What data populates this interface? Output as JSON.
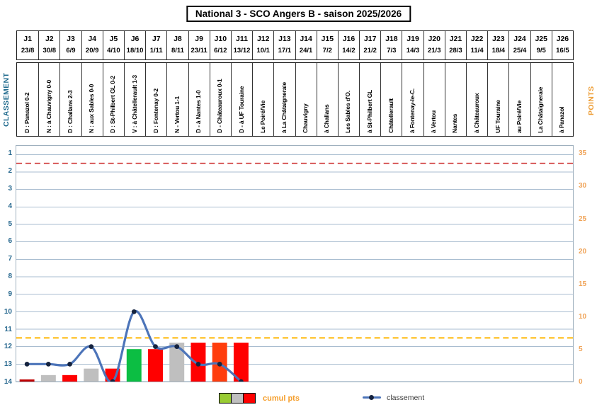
{
  "title": "National 3 - SCO Angers B - saison 2025/2026",
  "chart_data": {
    "type": "combo",
    "title": "National 3 - SCO Angers B - saison 2025/2026",
    "categories": [
      "J1",
      "J2",
      "J3",
      "J4",
      "J5",
      "J6",
      "J7",
      "J8",
      "J9",
      "J10",
      "J11",
      "J12",
      "J13",
      "J14",
      "J15",
      "J16",
      "J17",
      "J18",
      "J19",
      "J20",
      "J21",
      "J22",
      "J23",
      "J24",
      "J25",
      "J26"
    ],
    "dates": [
      "23/8",
      "30/8",
      "6/9",
      "20/9",
      "4/10",
      "18/10",
      "1/11",
      "8/11",
      "23/11",
      "6/12",
      "13/12",
      "10/1",
      "17/1",
      "24/1",
      "7/2",
      "14/2",
      "21/2",
      "7/3",
      "14/3",
      "21/3",
      "28/3",
      "11/4",
      "18/4",
      "25/4",
      "9/5",
      "16/5"
    ],
    "match_labels": [
      "D : Panazol 0-2",
      "N : à Chauvigny 0-0",
      "D : Challans 2-3",
      "N : aux Sables 0-0",
      "D : St-Philbert GL 0-2",
      "V : à Châtellerault 1-3",
      "D : Fontenay 0-2",
      "N - Vertou 1-1",
      "D - à Nantes 1-0",
      "D - Châteauroux 0-1",
      "D - à UF Touraine",
      "Le Poiré/Vie",
      "à La Châtaigneraie",
      "Chauvigny",
      "à Challans",
      "Les Sables d'O.",
      "à St-Philbert GL",
      "Châtellerault",
      "à Fontenay-le-C.",
      "à Vertou",
      "Nantes",
      "à Châteauroux",
      "UF Touraine",
      "au Poiré/Vie",
      "La Châtaigneraie",
      "à Panazol"
    ],
    "series": [
      {
        "name": "cumul pts",
        "type": "bar",
        "axis": "points",
        "values": [
          0,
          1,
          1,
          2,
          2,
          5,
          5,
          6,
          6,
          6,
          6,
          null,
          null,
          null,
          null,
          null,
          null,
          null,
          null,
          null,
          null,
          null,
          null,
          null,
          null,
          null
        ],
        "bar_colors": [
          "#C00000",
          "#BFBFBF",
          "#FF0000",
          "#BFBFBF",
          "#FF0000",
          "#0CBE43",
          "#FF0000",
          "#BFBFBF",
          "#FF0000",
          "#FF3D0D",
          "#FF0000"
        ]
      },
      {
        "name": "classement",
        "type": "line",
        "axis": "classement",
        "values": [
          13,
          13,
          13,
          12,
          14,
          10,
          12,
          12,
          13,
          13,
          14,
          null,
          null,
          null,
          null,
          null,
          null,
          null,
          null,
          null,
          null,
          null,
          null,
          null,
          null,
          null
        ],
        "line_color": "#4C74B9",
        "marker_color": "#15233F"
      }
    ],
    "left_axis": {
      "label": "CLASSEMENT",
      "color": "#1F6A8D",
      "tick_color": "#27688F",
      "min": 1,
      "max": 14,
      "reversed": true,
      "ticks": [
        1,
        2,
        3,
        4,
        5,
        6,
        7,
        8,
        9,
        10,
        11,
        12,
        13,
        14
      ]
    },
    "right_axis": {
      "label": "POINTS",
      "color": "#ED9D35",
      "tick_color": "#F0A459",
      "min": 0,
      "max": 35,
      "tick_step": 5,
      "ticks": [
        35,
        30,
        25,
        20,
        15,
        10,
        5,
        0
      ]
    },
    "reference_lines": [
      {
        "name": "promotion-line",
        "axis": "classement",
        "value": 1.5,
        "color": "#CE3333",
        "style": "dashed"
      },
      {
        "name": "relegation-line",
        "axis": "classement",
        "value": 11.5,
        "color": "#FFC432",
        "style": "dashed"
      }
    ],
    "grid": true,
    "gridline_color": "#A9BDD0",
    "legend": {
      "position": "bottom",
      "entries": [
        {
          "label": "cumul pts",
          "label_color": "#F59E2B",
          "swatches": [
            "#99CC33",
            "#BFBFBF",
            "#FF0000"
          ]
        },
        {
          "label": "classement",
          "label_color": "#3A3A3A",
          "marker": "line-dot"
        }
      ]
    }
  }
}
